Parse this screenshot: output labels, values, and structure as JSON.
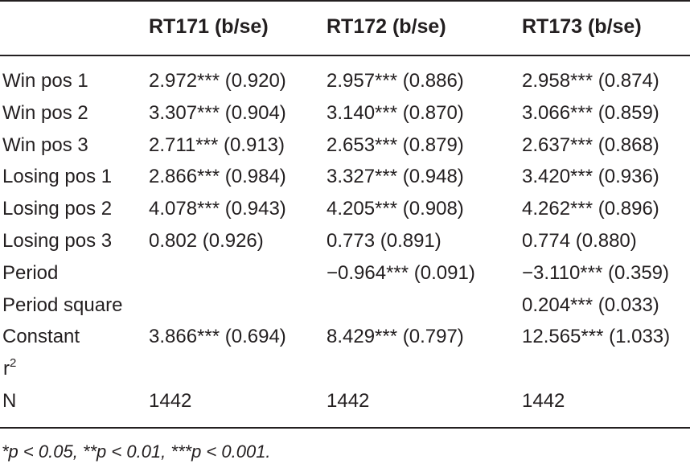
{
  "table": {
    "headers": [
      "",
      "RT171 (b/se)",
      "RT172 (b/se)",
      "RT173 (b/se)"
    ],
    "rows": [
      [
        "Win pos 1",
        "2.972*** (0.920)",
        "2.957*** (0.886)",
        "2.958*** (0.874)"
      ],
      [
        "Win pos 2",
        "3.307*** (0.904)",
        "3.140*** (0.870)",
        "3.066*** (0.859)"
      ],
      [
        "Win pos 3",
        "2.711*** (0.913)",
        "2.653*** (0.879)",
        "2.637*** (0.868)"
      ],
      [
        "Losing pos 1",
        "2.866*** (0.984)",
        "3.327*** (0.948)",
        "3.420*** (0.936)"
      ],
      [
        "Losing pos 2",
        "4.078*** (0.943)",
        "4.205*** (0.908)",
        "4.262*** (0.896)"
      ],
      [
        "Losing pos 3",
        "0.802 (0.926)",
        "0.773 (0.891)",
        "0.774 (0.880)"
      ],
      [
        "Period",
        "",
        "−0.964*** (0.091)",
        "−3.110*** (0.359)"
      ],
      [
        "Period square",
        "",
        "",
        "0.204*** (0.033)"
      ],
      [
        "Constant",
        "3.866*** (0.694)",
        "8.429*** (0.797)",
        "12.565*** (1.033)"
      ],
      [
        "r",
        "",
        "",
        ""
      ],
      [
        "N",
        "1442",
        "1442",
        "1442"
      ]
    ],
    "r2_superscript": "2",
    "footnote": "*p < 0.05,  **p < 0.01,  ***p < 0.001."
  }
}
